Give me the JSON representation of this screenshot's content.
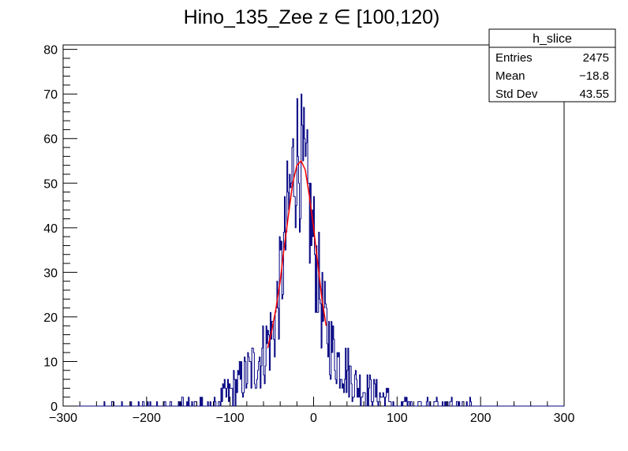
{
  "chart_data": {
    "type": "histogram",
    "title": "Hino_135_Zee z  ∈ [100,120)",
    "xlabel": "",
    "ylabel": "",
    "xlim": [
      -300,
      300
    ],
    "ylim": [
      0,
      81
    ],
    "x_ticks": [
      -300,
      -200,
      -100,
      0,
      100,
      200,
      300
    ],
    "x_tick_labels": [
      "−300",
      "−200",
      "−100",
      "0",
      "100",
      "200",
      "300"
    ],
    "y_ticks": [
      0,
      10,
      20,
      30,
      40,
      50,
      60,
      70,
      80
    ],
    "bin_width": 1,
    "grid": false,
    "legend": "none",
    "colors": {
      "histogram": "#000080",
      "fit": "#ff0000",
      "axes": "#000000"
    },
    "stats_box": {
      "placement": "top-right",
      "name": "h_slice",
      "rows": [
        {
          "label": "Entries",
          "value": "2475"
        },
        {
          "label": "Mean",
          "value": "−18.8"
        },
        {
          "label": "Std Dev",
          "value": "43.55"
        }
      ]
    },
    "series": [
      {
        "kind": "histogram",
        "description_points_x": [
          -300,
          -150,
          -120,
          -100,
          -90,
          -80,
          -70,
          -60,
          -50,
          -45,
          -40,
          -35,
          -30,
          -25,
          -20,
          -15,
          -10,
          -5,
          0,
          5,
          10,
          15,
          20,
          30,
          40,
          50,
          60,
          80,
          100,
          120,
          150,
          180,
          200,
          260,
          300
        ],
        "values": [
          0,
          1,
          1,
          3,
          5,
          7,
          9,
          12,
          16,
          20,
          27,
          35,
          44,
          52,
          57,
          55,
          50,
          44,
          37,
          30,
          22,
          17,
          14,
          10,
          8,
          5,
          4,
          2,
          1,
          1,
          1,
          1,
          0,
          0,
          0
        ]
      },
      {
        "kind": "fit",
        "x": [
          -55,
          -50,
          -45,
          -40,
          -35,
          -30,
          -25,
          -20,
          -15,
          -10,
          -5,
          0,
          5,
          10,
          15
        ],
        "values": [
          13,
          17,
          22,
          28,
          36,
          43,
          50,
          54,
          55,
          53,
          47,
          40,
          32,
          24,
          18
        ]
      }
    ]
  }
}
